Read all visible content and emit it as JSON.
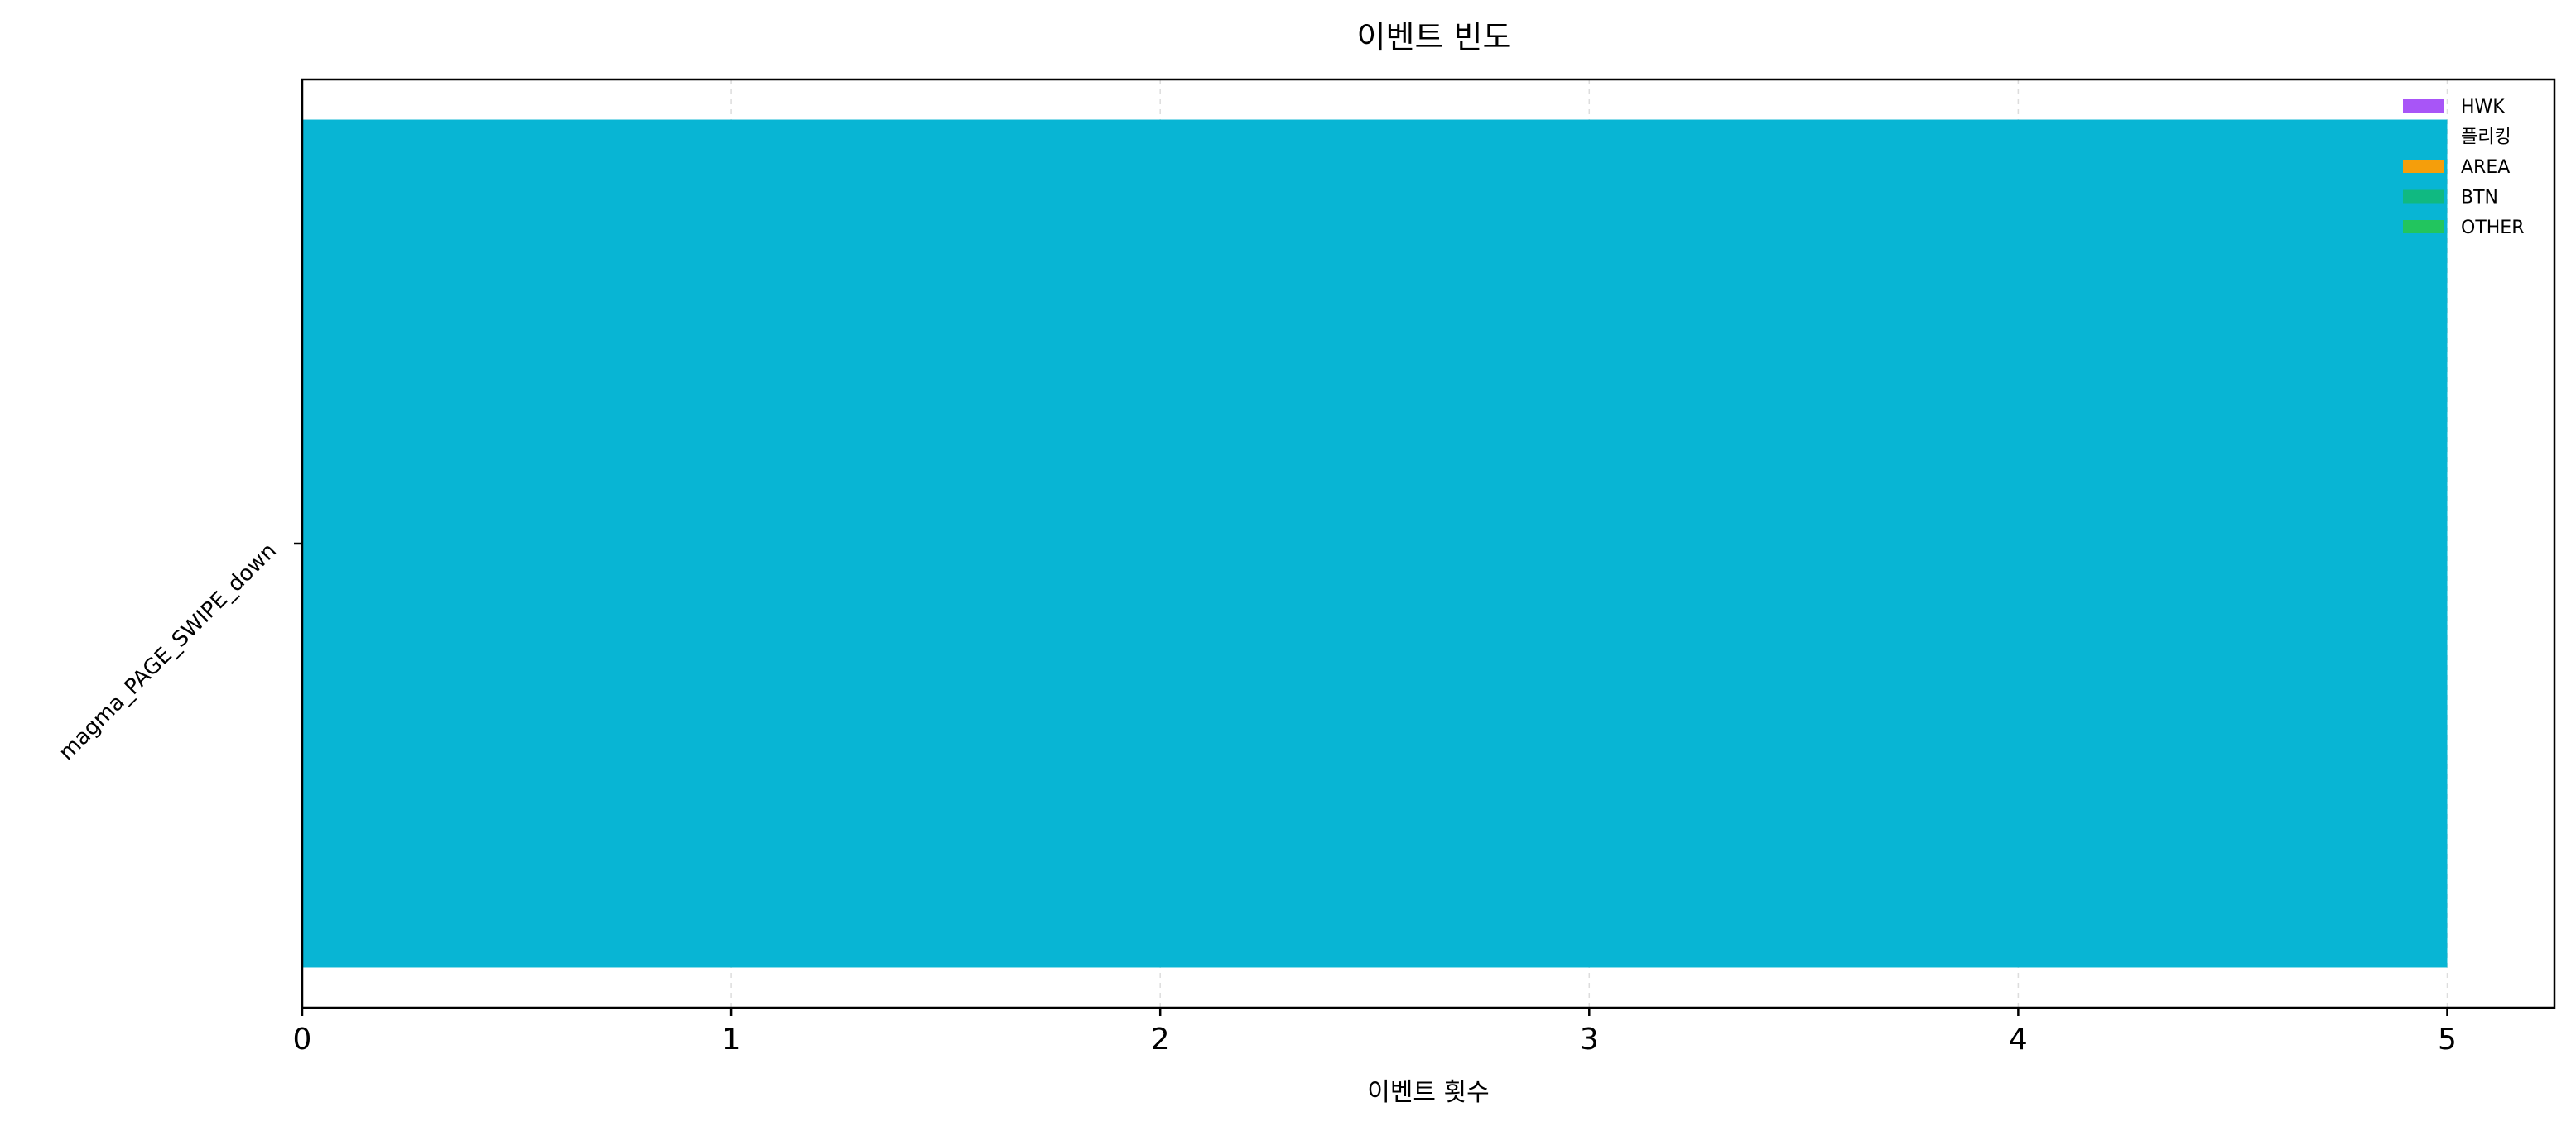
{
  "chart_data": {
    "type": "bar",
    "orientation": "horizontal",
    "title": "이벤트 빈도",
    "xlabel": "이벤트 횟수",
    "ylabel": "",
    "categories": [
      "magma_PAGE_SWIPE_down"
    ],
    "values": [
      5
    ],
    "bar_color": "#08b5d4",
    "xlim": [
      0,
      5.25
    ],
    "xticks": [
      0,
      1,
      2,
      3,
      4,
      5
    ],
    "grid": "x-dashed",
    "legend_position": "top-right",
    "legend": [
      {
        "label": "HWK",
        "color": "#a855f7"
      },
      {
        "label": "플리킹",
        "color": "#08b5d4"
      },
      {
        "label": "AREA",
        "color": "#f59e0b"
      },
      {
        "label": "BTN",
        "color": "#10b981"
      },
      {
        "label": "OTHER",
        "color": "#22c55e"
      }
    ]
  }
}
